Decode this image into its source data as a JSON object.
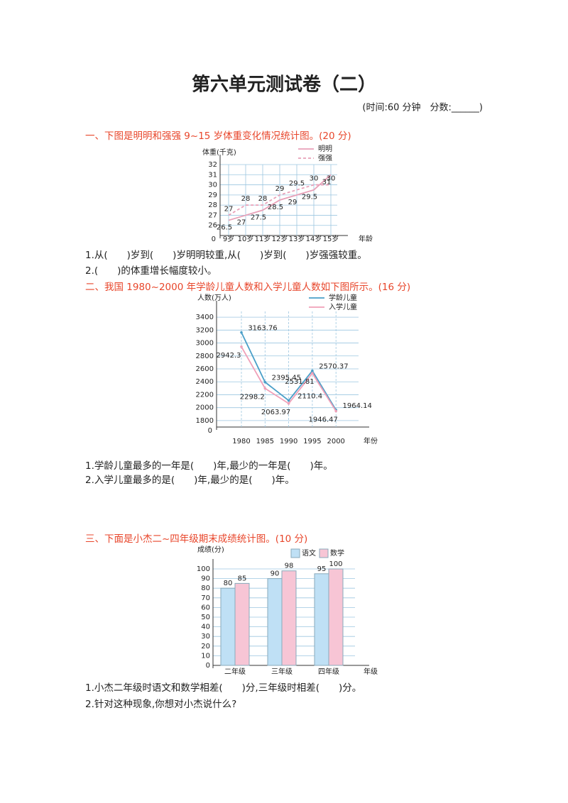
{
  "header": {
    "title": "第六单元测试卷（二）",
    "info": "(时间:60 分钟　分数:______)"
  },
  "sections": [
    {
      "heading": "一、下图是明明和强强 9~15 岁体重变化情况统计图。(20 分)",
      "chart_data": {
        "type": "line",
        "y_label": "体重(千克)",
        "x_label": "年龄",
        "origin_label": "0",
        "categories": [
          "9岁",
          "10岁",
          "11岁",
          "12岁",
          "13岁",
          "14岁",
          "15岁"
        ],
        "series": [
          {
            "name": "明明",
            "color": "#e8a0b8",
            "dash": false,
            "values": [
              26.5,
              27,
              27.5,
              28.5,
              29,
              29.5,
              31
            ]
          },
          {
            "name": "强强",
            "color": "#e8a0b8",
            "dash": true,
            "values": [
              27,
              28,
              28,
              29,
              29.5,
              30,
              30
            ]
          }
        ],
        "ylim": [
          25,
          32
        ],
        "yticks": [
          26,
          27,
          28,
          29,
          30,
          31,
          32
        ],
        "grid": true
      },
      "questions": [
        "1.从(　　)岁到(　　)岁明明较重,从(　　)岁到(　　)岁强强较重。",
        "2.(　　)的体重增长幅度较小。"
      ]
    },
    {
      "heading": "二、我国 1980~2000 年学龄儿童人数和入学儿童人数如下图所示。(16 分)",
      "chart_data": {
        "type": "line",
        "y_label": "人数(万人)",
        "x_label": "年份",
        "origin_label": "0",
        "categories": [
          "1980",
          "1985",
          "1990",
          "1995",
          "2000"
        ],
        "series": [
          {
            "name": "学龄儿童",
            "color": "#4a9fc8",
            "dash": false,
            "values": [
              3163.76,
              2395.45,
              2110.4,
              2570.37,
              1964.14
            ]
          },
          {
            "name": "入学儿童",
            "color": "#f0a0b8",
            "dash": false,
            "values": [
              2942.3,
              2298.2,
              2063.97,
              2531.81,
              1946.47
            ]
          }
        ],
        "ylim": [
          1700,
          3500
        ],
        "yticks": [
          1800,
          2000,
          2200,
          2400,
          2600,
          2800,
          3000,
          3200,
          3400
        ],
        "grid": true
      },
      "questions": [
        "1.学龄儿童最多的一年是(　　)年,最少的一年是(　　)年。",
        "2.入学儿童最多的是(　　)年,最少的是(　　)年。"
      ]
    },
    {
      "heading": "三、下面是小杰二~四年级期末成绩统计图。(10 分)",
      "chart_data": {
        "type": "bar",
        "y_label": "成绩(分)",
        "x_label": "年级",
        "categories": [
          "二年级",
          "三年级",
          "四年级"
        ],
        "series": [
          {
            "name": "语文",
            "color": "#bfe0f5",
            "values": [
              80,
              90,
              95
            ]
          },
          {
            "name": "数学",
            "color": "#f7c5d5",
            "values": [
              85,
              98,
              100
            ]
          }
        ],
        "ylim": [
          0,
          100
        ],
        "yticks": [
          0,
          10,
          20,
          30,
          40,
          50,
          60,
          70,
          80,
          90,
          100
        ],
        "grid": true
      },
      "questions": [
        "1.小杰二年级时语文和数学相差(　　)分,三年级时相差(　　)分。",
        "2.针对这种现象,你想对小杰说什么?"
      ]
    }
  ]
}
